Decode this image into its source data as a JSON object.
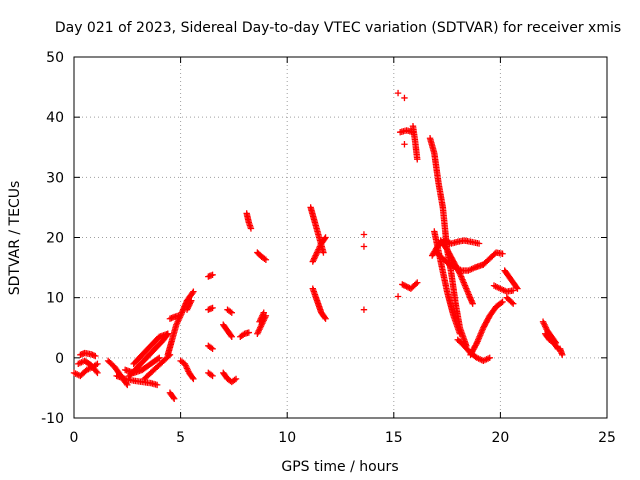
{
  "chart_data": {
    "type": "scatter",
    "title": "Day 021 of 2023, Sidereal Day-to-day VTEC variation (SDTVAR) for receiver xmis",
    "xlabel": "GPS time / hours",
    "ylabel": "SDTVAR / TECUs",
    "xlim": [
      0,
      25
    ],
    "ylim": [
      -10,
      50
    ],
    "xticks": [
      0,
      5,
      10,
      15,
      20,
      25
    ],
    "yticks": [
      -10,
      0,
      10,
      20,
      30,
      40,
      50
    ],
    "xtick_labels": [
      "0",
      "5",
      "10",
      "15",
      "20",
      "25"
    ],
    "ytick_labels": [
      "-10",
      "0",
      "10",
      "20",
      "30",
      "40",
      "50"
    ],
    "grid": true,
    "marker": "+",
    "color": "#ff0000",
    "segments": [
      {
        "x": [
          0.0,
          0.3,
          0.6,
          0.9,
          1.1
        ],
        "y": [
          -2.5,
          -3.0,
          -2.0,
          -1.5,
          -1.0
        ]
      },
      {
        "x": [
          0.3,
          0.5,
          0.8,
          1.0
        ],
        "y": [
          0.5,
          0.8,
          0.6,
          0.3
        ]
      },
      {
        "x": [
          0.2,
          0.5,
          0.8,
          1.1
        ],
        "y": [
          -1.0,
          -0.5,
          -1.2,
          -2.5
        ]
      },
      {
        "x": [
          1.6,
          1.9,
          2.2,
          2.5
        ],
        "y": [
          -0.5,
          -1.5,
          -3.0,
          -4.5
        ]
      },
      {
        "x": [
          2.0,
          2.4,
          2.8,
          3.2,
          3.6,
          3.9
        ],
        "y": [
          -3.0,
          -3.5,
          -3.8,
          -4.0,
          -4.2,
          -4.5
        ]
      },
      {
        "x": [
          2.4,
          2.8,
          3.2,
          3.6,
          4.0
        ],
        "y": [
          -2.0,
          -2.5,
          -2.0,
          -1.0,
          0.0
        ]
      },
      {
        "x": [
          2.6,
          3.0,
          3.4,
          3.8,
          4.2,
          4.4
        ],
        "y": [
          -3.0,
          -1.5,
          0.0,
          1.5,
          3.0,
          4.0
        ]
      },
      {
        "x": [
          2.8,
          3.2,
          3.6,
          4.0,
          4.4
        ],
        "y": [
          -1.0,
          0.5,
          2.0,
          3.5,
          4.0
        ]
      },
      {
        "x": [
          3.3,
          3.6,
          3.9,
          4.2,
          4.5
        ],
        "y": [
          -3.5,
          -2.5,
          -1.5,
          -0.5,
          0.5
        ]
      },
      {
        "x": [
          4.4,
          4.6,
          4.8,
          5.0,
          5.3,
          5.6
        ],
        "y": [
          0.5,
          3.0,
          5.5,
          7.0,
          9.5,
          11.0
        ]
      },
      {
        "x": [
          4.5,
          4.7
        ],
        "y": [
          -5.8,
          -6.8
        ]
      },
      {
        "x": [
          4.5,
          4.7,
          4.9
        ],
        "y": [
          6.5,
          6.8,
          7.0
        ]
      },
      {
        "x": [
          5.0,
          5.2,
          5.4,
          5.6
        ],
        "y": [
          -0.5,
          -1.0,
          -2.5,
          -3.5
        ]
      },
      {
        "x": [
          5.3,
          5.5
        ],
        "y": [
          8.0,
          9.5
        ]
      },
      {
        "x": [
          6.3,
          6.5
        ],
        "y": [
          13.5,
          13.8
        ]
      },
      {
        "x": [
          6.3,
          6.5
        ],
        "y": [
          8.0,
          8.3
        ]
      },
      {
        "x": [
          6.3,
          6.5
        ],
        "y": [
          2.0,
          1.5
        ]
      },
      {
        "x": [
          6.3,
          6.5
        ],
        "y": [
          -2.5,
          -3.0
        ]
      },
      {
        "x": [
          7.0,
          7.2,
          7.4,
          7.6
        ],
        "y": [
          -2.5,
          -3.5,
          -4.0,
          -3.5
        ]
      },
      {
        "x": [
          7.0,
          7.2,
          7.4
        ],
        "y": [
          5.5,
          4.5,
          3.5
        ]
      },
      {
        "x": [
          7.2,
          7.4
        ],
        "y": [
          8.0,
          7.5
        ]
      },
      {
        "x": [
          7.8,
          8.0,
          8.2
        ],
        "y": [
          3.5,
          4.0,
          4.2
        ]
      },
      {
        "x": [
          8.1,
          8.2,
          8.3
        ],
        "y": [
          24.0,
          22.5,
          21.5
        ]
      },
      {
        "x": [
          8.6,
          8.8,
          9.0
        ],
        "y": [
          4.0,
          5.5,
          7.0
        ]
      },
      {
        "x": [
          8.6,
          8.8,
          9.0
        ],
        "y": [
          17.5,
          16.8,
          16.3
        ]
      },
      {
        "x": [
          8.7,
          8.9
        ],
        "y": [
          6.0,
          7.5
        ]
      },
      {
        "x": [
          11.1,
          11.3,
          11.5,
          11.7
        ],
        "y": [
          25.0,
          22.5,
          20.0,
          17.5
        ]
      },
      {
        "x": [
          11.2,
          11.4,
          11.6,
          11.8
        ],
        "y": [
          16.0,
          17.5,
          19.0,
          20.0
        ]
      },
      {
        "x": [
          11.2,
          11.4,
          11.6,
          11.8
        ],
        "y": [
          11.5,
          9.5,
          7.5,
          6.5
        ]
      },
      {
        "x": [
          13.6
        ],
        "y": [
          20.5
        ]
      },
      {
        "x": [
          13.6
        ],
        "y": [
          18.5
        ]
      },
      {
        "x": [
          13.6
        ],
        "y": [
          8.0
        ]
      },
      {
        "x": [
          15.2
        ],
        "y": [
          44.0
        ]
      },
      {
        "x": [
          15.2
        ],
        "y": [
          10.2
        ]
      },
      {
        "x": [
          15.3,
          15.6,
          15.9
        ],
        "y": [
          37.5,
          37.8,
          37.5
        ]
      },
      {
        "x": [
          15.5
        ],
        "y": [
          43.2
        ]
      },
      {
        "x": [
          15.5
        ],
        "y": [
          35.5
        ]
      },
      {
        "x": [
          15.9,
          16.0,
          16.1
        ],
        "y": [
          38.5,
          36.0,
          33.0
        ]
      },
      {
        "x": [
          15.4,
          15.8,
          16.1
        ],
        "y": [
          12.2,
          11.5,
          12.5
        ]
      },
      {
        "x": [
          16.7,
          16.9,
          17.1,
          17.3,
          17.5,
          17.7,
          17.9,
          18.1,
          18.4
        ],
        "y": [
          36.5,
          34.0,
          29.0,
          25.0,
          18.0,
          14.0,
          9.0,
          5.0,
          2.0
        ]
      },
      {
        "x": [
          16.9,
          17.2,
          17.5,
          17.8,
          18.1
        ],
        "y": [
          21.0,
          16.0,
          11.0,
          7.0,
          4.0
        ]
      },
      {
        "x": [
          16.8,
          17.1,
          17.4,
          17.7,
          18.0,
          18.3,
          18.6,
          19.0
        ],
        "y": [
          17.0,
          18.8,
          19.5,
          19.0,
          19.3,
          19.5,
          19.3,
          19.0
        ]
      },
      {
        "x": [
          17.0,
          17.3,
          17.6,
          17.9,
          18.2,
          18.5,
          18.8,
          19.2
        ],
        "y": [
          17.5,
          16.5,
          15.5,
          15.0,
          14.5,
          14.5,
          15.0,
          15.5
        ]
      },
      {
        "x": [
          17.2,
          17.5,
          17.8,
          18.1,
          18.4,
          18.7
        ],
        "y": [
          19.5,
          18.0,
          16.0,
          14.0,
          11.5,
          9.0
        ]
      },
      {
        "x": [
          18.0,
          18.3,
          18.6,
          18.9,
          19.2,
          19.5
        ],
        "y": [
          3.0,
          2.0,
          0.8,
          0.0,
          -0.5,
          0.0
        ]
      },
      {
        "x": [
          18.6,
          18.9,
          19.2,
          19.5,
          19.8,
          20.1
        ],
        "y": [
          0.5,
          2.5,
          5.0,
          7.0,
          8.5,
          9.3
        ]
      },
      {
        "x": [
          19.2,
          19.5,
          19.8,
          20.1
        ],
        "y": [
          15.5,
          16.5,
          17.5,
          17.3
        ]
      },
      {
        "x": [
          19.7,
          20.0,
          20.3,
          20.6
        ],
        "y": [
          12.0,
          11.5,
          11.0,
          11.2
        ]
      },
      {
        "x": [
          20.2,
          20.4,
          20.6,
          20.8
        ],
        "y": [
          14.5,
          13.5,
          12.5,
          11.5
        ]
      },
      {
        "x": [
          20.3,
          20.6
        ],
        "y": [
          10.0,
          9.0
        ]
      },
      {
        "x": [
          22.0,
          22.2,
          22.4,
          22.6
        ],
        "y": [
          6.0,
          4.5,
          3.5,
          2.5
        ]
      },
      {
        "x": [
          22.1,
          22.3,
          22.5,
          22.7
        ],
        "y": [
          4.0,
          3.0,
          2.5,
          1.5
        ]
      },
      {
        "x": [
          22.8,
          22.9
        ],
        "y": [
          1.5,
          0.5
        ]
      }
    ]
  }
}
